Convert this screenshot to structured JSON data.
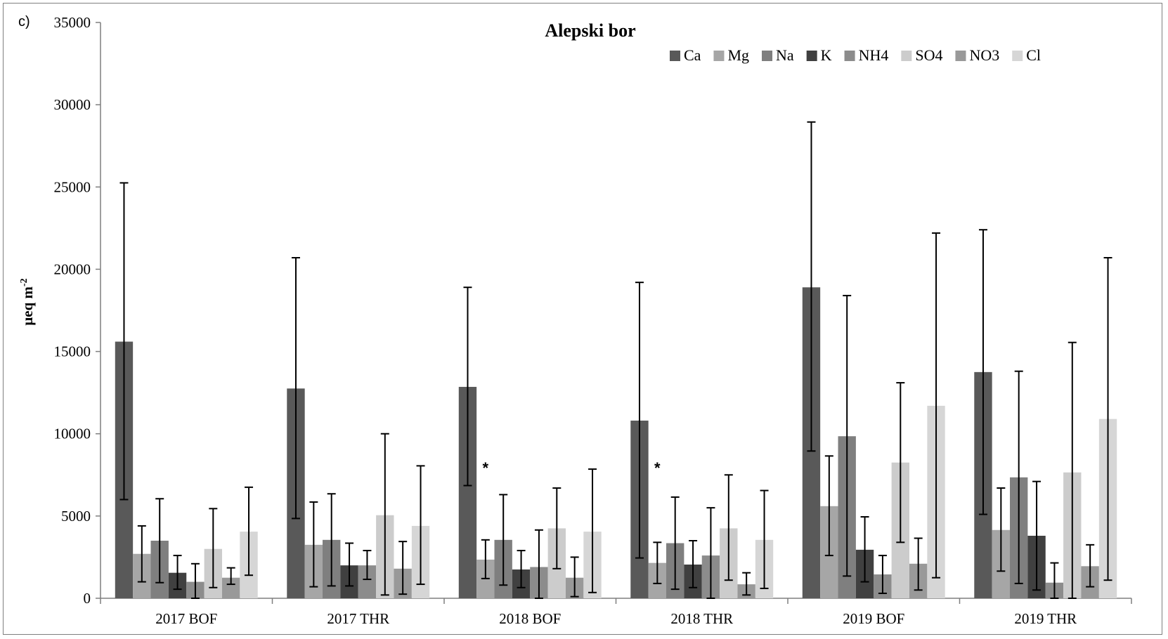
{
  "panel_label": "c)",
  "chart_data": {
    "type": "bar",
    "title": "Alepski bor",
    "ylabel": "μeq m",
    "ylabel_superscript": "-2",
    "xlabel": "",
    "ylim": [
      0,
      35000
    ],
    "yticks": [
      0,
      5000,
      10000,
      15000,
      20000,
      25000,
      30000,
      35000
    ],
    "categories": [
      "2017 BOF",
      "2017 THR",
      "2018 BOF",
      "2018 THR",
      "2019 BOF",
      "2019 THR"
    ],
    "legend_position": "top-right",
    "grid": false,
    "series": [
      {
        "name": "Ca",
        "color": "#595959",
        "values": [
          15600,
          12750,
          12850,
          10800,
          18900,
          13750
        ],
        "err_low": [
          6000,
          4850,
          6850,
          2450,
          8950,
          5100
        ],
        "err_high": [
          25250,
          20700,
          18900,
          19200,
          28950,
          22400
        ]
      },
      {
        "name": "Mg",
        "color": "#a6a6a6",
        "values": [
          2700,
          3250,
          2350,
          2150,
          5600,
          4150
        ],
        "err_low": [
          1000,
          700,
          1200,
          900,
          2600,
          1650
        ],
        "err_high": [
          4400,
          5850,
          3550,
          3400,
          8650,
          6700
        ]
      },
      {
        "name": "Na",
        "color": "#7f7f7f",
        "values": [
          3500,
          3550,
          3550,
          3350,
          9850,
          7350
        ],
        "err_low": [
          950,
          750,
          800,
          550,
          1350,
          900
        ],
        "err_high": [
          6050,
          6350,
          6300,
          6150,
          18400,
          13800
        ]
      },
      {
        "name": "K",
        "color": "#404040",
        "values": [
          1550,
          2000,
          1750,
          2050,
          2950,
          3800
        ],
        "err_low": [
          550,
          750,
          650,
          650,
          1000,
          500
        ],
        "err_high": [
          2600,
          3350,
          2900,
          3500,
          4950,
          7100
        ]
      },
      {
        "name": "NH4",
        "color": "#8c8c8c",
        "values": [
          1000,
          2000,
          1900,
          2600,
          1450,
          950
        ],
        "err_low": [
          0,
          1150,
          0,
          0,
          300,
          0
        ],
        "err_high": [
          2100,
          2900,
          4150,
          5500,
          2600,
          2150
        ]
      },
      {
        "name": "SO4",
        "color": "#cccccc",
        "values": [
          3000,
          5050,
          4250,
          4250,
          8250,
          7650
        ],
        "err_low": [
          650,
          200,
          1800,
          1100,
          3400,
          0
        ],
        "err_high": [
          5450,
          10000,
          6700,
          7500,
          13100,
          15550
        ]
      },
      {
        "name": "NO3",
        "color": "#999999",
        "values": [
          1250,
          1800,
          1250,
          850,
          2100,
          1950
        ],
        "err_low": [
          850,
          250,
          100,
          200,
          500,
          700
        ],
        "err_high": [
          1850,
          3450,
          2500,
          1550,
          3650,
          3250
        ]
      },
      {
        "name": "Cl",
        "color": "#d6d6d6",
        "values": [
          4050,
          4400,
          4050,
          3550,
          11700,
          10900
        ],
        "err_low": [
          1400,
          850,
          350,
          600,
          1250,
          1100
        ],
        "err_high": [
          6750,
          8050,
          7850,
          6550,
          22200,
          20700
        ]
      }
    ],
    "annotations": [
      {
        "text": "*",
        "category": "2018 BOF",
        "value": 8100
      },
      {
        "text": "*",
        "category": "2018 THR",
        "value": 8100
      }
    ]
  }
}
